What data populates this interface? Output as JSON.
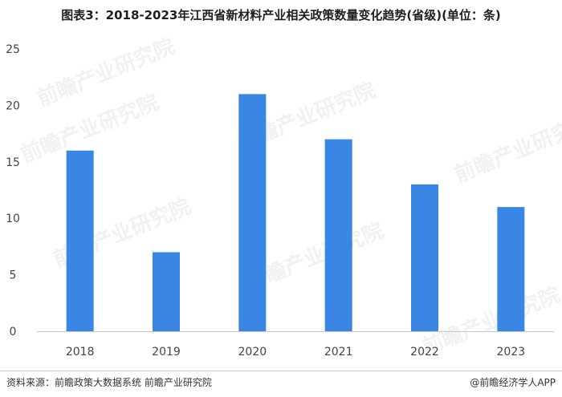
{
  "title": "图表3：2018-2023年江西省新材料产业相关政策数量变化趋势(省级)(单位：条)",
  "chart_data": {
    "type": "bar",
    "categories": [
      "2018",
      "2019",
      "2020",
      "2021",
      "2022",
      "2023"
    ],
    "values": [
      16,
      7,
      21,
      17,
      13,
      11
    ],
    "ylim": [
      0,
      25
    ],
    "yticks": [
      "0",
      "5",
      "10",
      "15",
      "20",
      "25"
    ],
    "grid": false,
    "bar_color": "#3a86e4",
    "xlabel": "",
    "ylabel": ""
  },
  "footer": {
    "source": "资料来源：前瞻政策大数据系统 前瞻产业研究院",
    "brand": "@前瞻经济学人APP"
  },
  "watermark": "前瞻产业研究院"
}
